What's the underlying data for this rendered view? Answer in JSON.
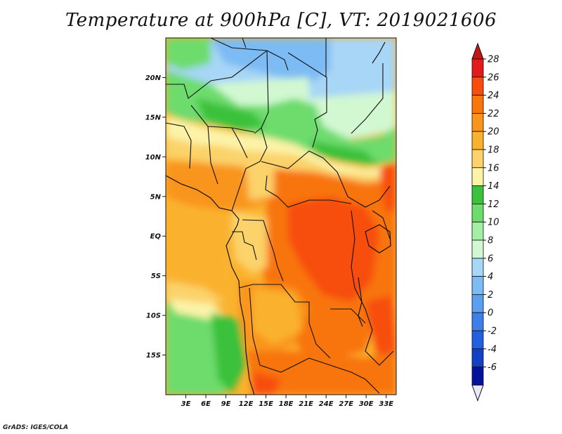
{
  "title": "Temperature at 900hPa [C], VT: 2019021606",
  "credit": "GrADS: IGES/COLA",
  "map": {
    "lon_range": [
      0,
      34.5
    ],
    "lat_range": [
      -20,
      25
    ],
    "x_ticks": [
      {
        "lon": 3,
        "label": "3E"
      },
      {
        "lon": 6,
        "label": "6E"
      },
      {
        "lon": 9,
        "label": "9E"
      },
      {
        "lon": 12,
        "label": "12E"
      },
      {
        "lon": 15,
        "label": "15E"
      },
      {
        "lon": 18,
        "label": "18E"
      },
      {
        "lon": 21,
        "label": "21E"
      },
      {
        "lon": 24,
        "label": "24E"
      },
      {
        "lon": 27,
        "label": "27E"
      },
      {
        "lon": 30,
        "label": "30E"
      },
      {
        "lon": 33,
        "label": "33E"
      }
    ],
    "y_ticks": [
      {
        "lat": 20,
        "label": "20N"
      },
      {
        "lat": 15,
        "label": "15N"
      },
      {
        "lat": 10,
        "label": "10N"
      },
      {
        "lat": 5,
        "label": "5N"
      },
      {
        "lat": 0,
        "label": "EQ"
      },
      {
        "lat": -5,
        "label": "5S"
      },
      {
        "lat": -10,
        "label": "10S"
      },
      {
        "lat": -15,
        "label": "15S"
      }
    ]
  },
  "colorbar": {
    "levels": [
      "28",
      "26",
      "24",
      "22",
      "20",
      "18",
      "16",
      "14",
      "12",
      "10",
      "8",
      "6",
      "4",
      "2",
      "0",
      "-2",
      "-4",
      "-6"
    ],
    "colors_top_to_bottom": [
      "#e31a1c",
      "#f74e0e",
      "#f8750f",
      "#f9951c",
      "#fab22e",
      "#fbd36a",
      "#fcf3a8",
      "#3bc13b",
      "#6ddc6d",
      "#a5eea5",
      "#d2f8d2",
      "#a7d6f7",
      "#7cbbf3",
      "#5b9ff0",
      "#3f7fe8",
      "#2360e0",
      "#1241c5",
      "#07129a"
    ],
    "top_arrow_color": "#c91414",
    "bottom_arrow_color": "#e8e8f8"
  }
}
